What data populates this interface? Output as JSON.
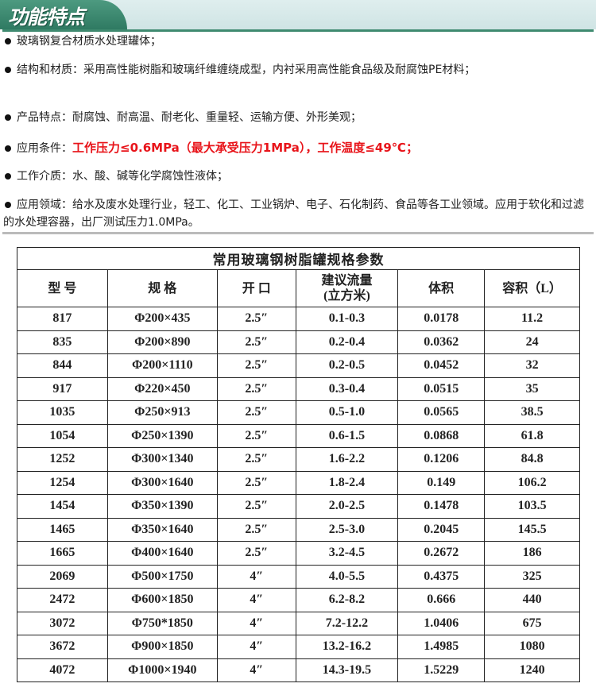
{
  "header": {
    "title": "功能特点",
    "accent_color": "#3f8a70"
  },
  "features": [
    {
      "label": "",
      "text": "玻璃钢复合材质水处理罐体；"
    },
    {
      "label": "结构和材质：",
      "text": "采用高性能树脂和玻璃纤维缠绕成型，内衬采用高性能食品级及耐腐蚀PE材料；"
    },
    {
      "label": "产品特点：",
      "text": "耐腐蚀、耐高温、耐老化、重量轻、运输方便、外形美观；"
    },
    {
      "label": "应用条件：",
      "text": "工作压力≤0.6MPa（最大承受压力1MPa），工作温度≤49℃；",
      "color": "#e8141a"
    },
    {
      "label": "工作介质：",
      "text": "水、酸、碱等化学腐蚀性液体；"
    },
    {
      "label": "应用领域：",
      "text": "给水及废水处理行业，轻工、化工、工业锅炉、电子、石化制药、食品等各工业领域。应用于软化和过滤的水处理容器，出厂测试压力1.0MPa。"
    }
  ],
  "table": {
    "title": "常用玻璃钢树脂罐规格参数",
    "headers": [
      "型 号",
      "规 格",
      "开 口",
      "建议流量\n(立方米)",
      "体积",
      "容积（L）"
    ],
    "rows": [
      [
        "817",
        "Φ200×435",
        "2.5″",
        "0.1-0.3",
        "0.0178",
        "11.2"
      ],
      [
        "835",
        "Φ200×890",
        "2.5″",
        "0.2-0.4",
        "0.0362",
        "24"
      ],
      [
        "844",
        "Φ200×1110",
        "2.5″",
        "0.2-0.5",
        "0.0452",
        "32"
      ],
      [
        "917",
        "Φ220×450",
        "2.5″",
        "0.3-0.4",
        "0.0515",
        "35"
      ],
      [
        "1035",
        "Φ250×913",
        "2.5″",
        "0.5-1.0",
        "0.0565",
        "38.5"
      ],
      [
        "1054",
        "Φ250×1390",
        "2.5″",
        "0.6-1.5",
        "0.0868",
        "61.8"
      ],
      [
        "1252",
        "Φ300×1340",
        "2.5″",
        "1.6-2.2",
        "0.1206",
        "84.8"
      ],
      [
        "1254",
        "Φ300×1640",
        "2.5″",
        "1.8-2.4",
        "0.149",
        "106.2"
      ],
      [
        "1454",
        "Φ350×1390",
        "2.5″",
        "2.0-2.5",
        "0.1478",
        "103.5"
      ],
      [
        "1465",
        "Φ350×1640",
        "2.5″",
        "2.5-3.0",
        "0.2045",
        "145.5"
      ],
      [
        "1665",
        "Φ400×1640",
        "2.5″",
        "3.2-4.5",
        "0.2672",
        "186"
      ],
      [
        "2069",
        "Φ500×1750",
        "4″",
        "4.0-5.5",
        "0.4375",
        "325"
      ],
      [
        "2472",
        "Φ600×1850",
        "4″",
        "6.2-8.2",
        "0.666",
        "440"
      ],
      [
        "3072",
        "Φ750*1850",
        "4″",
        "7.2-12.2",
        "1.0406",
        "675"
      ],
      [
        "3672",
        "Φ900×1850",
        "4″",
        "13.2-16.2",
        "1.4985",
        "1080"
      ],
      [
        "4072",
        "Φ1000×1940",
        "4″",
        "14.3-19.5",
        "1.5229",
        "1240"
      ]
    ]
  }
}
